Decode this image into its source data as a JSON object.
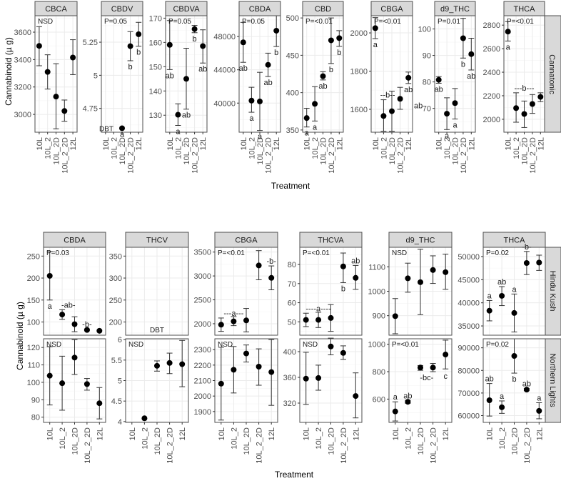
{
  "treatments": [
    "10L",
    "10L_2",
    "10L_2D",
    "10L_2_2D",
    "12L"
  ],
  "colors": {
    "strip_fill": "#d9d9d9",
    "panel_border": "#4d4d4d",
    "grid_major": "#ebebeb",
    "grid_minor": "#f5f5f5",
    "axis_text": "#4d4d4d",
    "point": "#000000"
  },
  "chart_data": [
    {
      "type": "scatter",
      "title": "Cannatonic",
      "xlabel": "Treatment",
      "ylabel": "Cannabinoid (µ g)",
      "row_strip": "Cannatonic",
      "categories": [
        "10L",
        "10L_2",
        "10L_2D",
        "10L_2_2D",
        "12L"
      ],
      "panels": [
        {
          "name": "CBCA",
          "stat": "NSD",
          "ylim": [
            2870,
            3720
          ],
          "yticks": [
            3000,
            3200,
            3400,
            3600
          ],
          "values": [
            3500,
            3310,
            3130,
            3025,
            3415
          ],
          "err_low": [
            3355,
            3185,
            2895,
            2950,
            3290
          ],
          "err_high": [
            3640,
            3435,
            3370,
            3105,
            3545
          ],
          "letters": [
            "",
            "",
            "",
            "",
            ""
          ]
        },
        {
          "name": "CBDV",
          "stat": "P=0.05",
          "ylim": [
            4.57,
            5.45
          ],
          "yticks": [
            4.75,
            5.0,
            5.25
          ],
          "values": [
            null,
            null,
            4.6,
            5.22,
            5.31
          ],
          "err_low": [
            null,
            null,
            null,
            5.11,
            5.22
          ],
          "err_high": [
            null,
            null,
            null,
            5.33,
            5.4
          ],
          "letters": [
            "",
            "",
            "a",
            "b",
            "b"
          ],
          "note": "DBT"
        },
        {
          "name": "CBDVA",
          "stat": "P=0.05",
          "ylim": [
            123,
            171
          ],
          "yticks": [
            130,
            140,
            150,
            160,
            170
          ],
          "values": [
            159,
            130.2,
            145,
            165.5,
            158.5
          ],
          "err_low": [
            148.8,
            125.8,
            132.5,
            164,
            151.5
          ],
          "err_high": [
            169,
            134.7,
            157.6,
            167,
            165.2
          ],
          "letters": [
            "ab",
            "a",
            "ab",
            "b",
            "ab"
          ]
        },
        {
          "name": "CBDA",
          "stat": "P=0.05",
          "ylim": [
            36500,
            50500
          ],
          "yticks": [
            40000,
            44000,
            48000
          ],
          "values": [
            47300,
            40300,
            40200,
            44600,
            48700
          ],
          "err_low": [
            44900,
            38900,
            36700,
            43200,
            46800
          ],
          "err_high": [
            49700,
            41900,
            43700,
            46000,
            50600
          ],
          "letters": [
            "ab",
            "a",
            "a",
            "ab",
            "b"
          ]
        },
        {
          "name": "CBD",
          "stat": "P=<0.01",
          "ylim": [
            347,
            503
          ],
          "yticks": [
            350,
            400,
            450,
            500
          ],
          "values": [
            366,
            385,
            422,
            470,
            473
          ],
          "err_low": [
            354,
            362,
            417,
            439,
            462
          ],
          "err_high": [
            379,
            408,
            428,
            500,
            483
          ],
          "letters": [
            "a",
            "a",
            "ab",
            "b",
            "b"
          ]
        },
        {
          "name": "CBGA",
          "stat": "P=<0.01",
          "ylim": [
            1480,
            2090
          ],
          "yticks": [
            1600,
            1800,
            2000
          ],
          "values": [
            2025,
            1565,
            1590,
            1655,
            1765
          ],
          "err_low": [
            1970,
            1485,
            1485,
            1600,
            1735
          ],
          "err_high": [
            2080,
            1650,
            1695,
            1715,
            1795
          ],
          "letters": [
            "a",
            "--b--",
            "",
            "",
            "ab"
          ],
          "extra_label": "ab"
        },
        {
          "name": "d9_THC",
          "stat": "P=0.01",
          "ylim": [
            61,
            105
          ],
          "yticks": [
            70,
            80,
            90,
            100
          ],
          "values": [
            80.8,
            68,
            72,
            96.5,
            90.5
          ],
          "err_low": [
            79.5,
            62,
            66,
            89,
            84.5
          ],
          "err_high": [
            82,
            74,
            77.5,
            104,
            96.5
          ],
          "letters": [
            "ab",
            "a",
            "a",
            "b",
            "ab"
          ]
        },
        {
          "name": "THCA",
          "stat": "P=<0.01",
          "ylim": [
            1890,
            2880
          ],
          "yticks": [
            2000,
            2200,
            2400,
            2600,
            2800
          ],
          "values": [
            2745,
            2095,
            2045,
            2130,
            2190
          ],
          "err_low": [
            2665,
            1975,
            1930,
            2050,
            2150
          ],
          "err_high": [
            2830,
            2225,
            2155,
            2210,
            2225
          ],
          "letters": [
            "a",
            "---b---",
            "",
            "",
            ""
          ]
        }
      ]
    },
    {
      "type": "scatter",
      "xlabel": "Treatment",
      "ylabel": "Cannabinoid (µ g)",
      "categories": [
        "10L",
        "10L_2",
        "10L_2D",
        "10L_2_2D",
        "12L"
      ],
      "row_strips": [
        "Hindu Kush",
        "Northern Lights"
      ],
      "panels": [
        {
          "name": "CBDA",
          "row": "Hindu Kush",
          "stat": "P=0.03",
          "ylim": [
            70,
            270
          ],
          "yticks": [
            100,
            150,
            200,
            250
          ],
          "values": [
            205,
            117,
            95,
            82,
            80
          ],
          "err_low": [
            150,
            106,
            78,
            80,
            null
          ],
          "err_high": [
            260,
            128,
            112,
            84,
            null
          ],
          "letters": [
            "a",
            "-ab-",
            "",
            "-b-",
            ""
          ]
        },
        {
          "name": "THCV",
          "row": "Hindu Kush",
          "stat": "",
          "ylim": [
            170,
            370
          ],
          "yticks": [
            200,
            250,
            300,
            350
          ],
          "values": [
            null,
            null,
            null,
            null,
            null
          ],
          "note": "DBT"
        },
        {
          "name": "CBGA",
          "row": "Hindu Kush",
          "stat": "P=<0.01",
          "ylim": [
            1760,
            3600
          ],
          "yticks": [
            2000,
            2500,
            3000,
            3500
          ],
          "values": [
            1980,
            2050,
            2070,
            3220,
            2960
          ],
          "err_low": [
            1840,
            1960,
            1830,
            2920,
            2710
          ],
          "err_high": [
            2120,
            2150,
            2320,
            3530,
            3210
          ],
          "letters": [
            "---a---",
            "",
            "",
            "",
            "-b-"
          ]
        },
        {
          "name": "THCVA",
          "row": "Hindu Kush",
          "stat": "P=<0.01",
          "ylim": [
            43,
            89
          ],
          "yticks": [
            50,
            60,
            70,
            80
          ],
          "values": [
            51,
            51,
            52,
            79,
            73
          ],
          "err_low": [
            47.5,
            47,
            45,
            70.5,
            67
          ],
          "err_high": [
            54.5,
            55,
            59,
            86,
            79.5
          ],
          "letters": [
            "----a----",
            "",
            "",
            "b",
            "ab"
          ]
        },
        {
          "name": "d9_THC",
          "row": "Hindu Kush",
          "stat": "NSD",
          "ylim": [
            820,
            1180
          ],
          "yticks": [
            900,
            1000,
            1100
          ],
          "values": [
            898,
            1053,
            1037,
            1087,
            1078
          ],
          "err_low": [
            826,
            996,
            904,
            1032,
            1008
          ],
          "err_high": [
            970,
            1115,
            1172,
            1145,
            1152
          ],
          "letters": [
            "",
            "",
            "",
            "",
            ""
          ]
        },
        {
          "name": "THCA",
          "row": "Hindu Kush",
          "stat": "P=0.02",
          "ylim": [
            33000,
            52000
          ],
          "yticks": [
            35000,
            40000,
            45000,
            50000
          ],
          "values": [
            38300,
            41500,
            37800,
            48600,
            48700
          ],
          "err_low": [
            36100,
            39400,
            33700,
            46100,
            47000
          ],
          "err_high": [
            40500,
            43500,
            41900,
            51100,
            50300
          ],
          "letters": [
            "a",
            "ab",
            "a",
            "-b-",
            ""
          ]
        },
        {
          "name": "CBDA",
          "row": "Northern Lights",
          "stat": "NSD",
          "ylim": [
            77,
            125
          ],
          "yticks": [
            80,
            90,
            100,
            110,
            120
          ],
          "values": [
            103.8,
            99.5,
            114.2,
            99,
            88
          ],
          "err_low": [
            87,
            84,
            104.5,
            95.5,
            79
          ],
          "err_high": [
            120.5,
            115,
            124.5,
            102.2,
            97
          ],
          "letters": [
            "",
            "",
            "",
            "",
            ""
          ]
        },
        {
          "name": "THCV",
          "row": "Northern Lights",
          "stat": "NSD",
          "ylim": [
            3.98,
            6.02
          ],
          "yticks": [
            4.0,
            4.5,
            5.0,
            5.5,
            6.0
          ],
          "values": [
            null,
            4.08,
            5.36,
            5.43,
            5.4
          ],
          "err_low": [
            null,
            null,
            5.23,
            5.17,
            4.85
          ],
          "err_high": [
            null,
            null,
            5.48,
            5.67,
            5.98
          ],
          "letters": [
            "",
            "",
            "",
            "",
            ""
          ]
        },
        {
          "name": "CBGA",
          "row": "Northern Lights",
          "stat": "NSD",
          "ylim": [
            1830,
            2370
          ],
          "yticks": [
            1900,
            2000,
            2100,
            2200,
            2300
          ],
          "values": [
            2080,
            2170,
            2275,
            2190,
            2155
          ],
          "err_low": [
            1845,
            2020,
            2220,
            2070,
            1940
          ],
          "err_high": [
            2315,
            2320,
            2330,
            2305,
            2365
          ],
          "letters": [
            "",
            "",
            "",
            "",
            ""
          ]
        },
        {
          "name": "THCVA",
          "row": "Northern Lights",
          "stat": "NSD",
          "ylim": [
            290,
            420
          ],
          "yticks": [
            320,
            360,
            400
          ],
          "values": [
            358,
            359,
            408,
            398,
            331
          ],
          "err_low": [
            318,
            340,
            395,
            388,
            297
          ],
          "err_high": [
            399,
            379,
            421,
            409,
            367
          ],
          "letters": [
            "",
            "",
            "",
            "",
            ""
          ]
        },
        {
          "name": "d9_THC",
          "row": "Northern Lights",
          "stat": "P=<0.01",
          "ylim": [
            430,
            1040
          ],
          "yticks": [
            600,
            800,
            1000
          ],
          "values": [
            510,
            580,
            830,
            830,
            925
          ],
          "err_low": [
            440,
            570,
            810,
            800,
            820
          ],
          "err_high": [
            580,
            590,
            845,
            860,
            1030
          ],
          "letters": [
            "a",
            "ab",
            "-bc-",
            "",
            "c"
          ]
        },
        {
          "name": "THCA",
          "row": "Northern Lights",
          "stat": "P=0.02",
          "ylim": [
            57000,
            94000
          ],
          "yticks": [
            60000,
            70000,
            80000,
            90000
          ],
          "values": [
            66800,
            63700,
            86400,
            71500,
            62100
          ],
          "err_low": [
            59800,
            61000,
            78800,
            71000,
            58600
          ],
          "err_high": [
            74200,
            66500,
            94000,
            72000,
            65700
          ],
          "letters": [
            "ab",
            "a",
            "b",
            "ab",
            "a"
          ]
        }
      ]
    }
  ],
  "labels": {
    "ylabel": "Cannabinoid (µ g)",
    "xlabel_top": "Treatment",
    "xlabel_bottom": "Treatment",
    "strip_top": "Cannatonic",
    "strip_hk": "Hindu Kush",
    "strip_nl": "Northern Lights"
  }
}
